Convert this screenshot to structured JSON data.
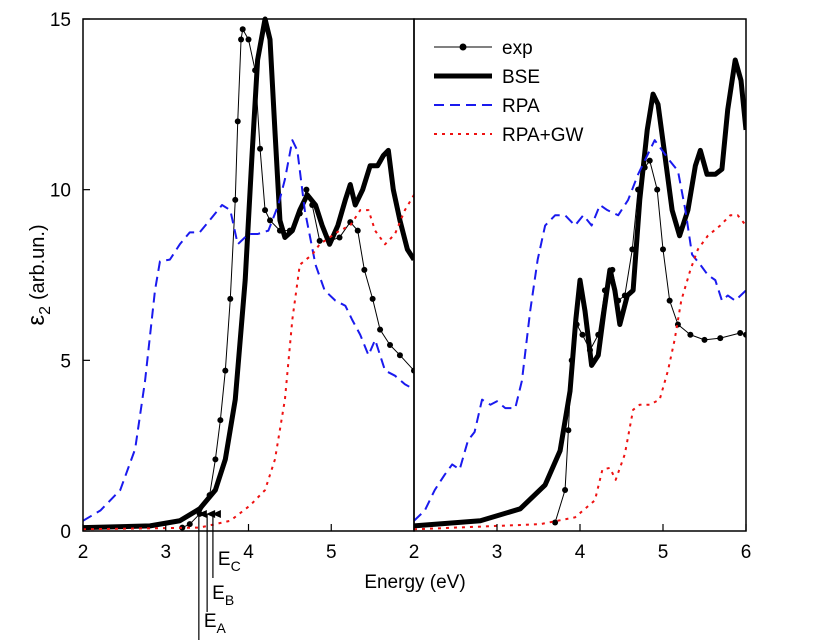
{
  "chart_data": [
    {
      "type": "line",
      "xlabel": "Energy (eV)",
      "ylabel": {
        "symbol": "ε",
        "subscript": "2",
        "unit": "(arb.un.)"
      },
      "xlim": [
        2,
        6
      ],
      "xticks": [
        2,
        3,
        4,
        5
      ],
      "ylim": [
        0,
        15
      ],
      "yticks": [
        0,
        5,
        10,
        15
      ],
      "series": [
        {
          "color": "#000000",
          "style": "dots",
          "width": 1,
          "x": [
            3.2,
            3.29,
            3.41,
            3.53,
            3.6,
            3.66,
            3.72,
            3.78,
            3.84,
            3.87,
            3.91,
            3.93,
            4.0,
            4.08,
            4.14,
            4.2,
            4.26,
            4.38,
            4.5,
            4.62,
            4.7,
            4.77,
            4.86,
            4.98,
            5.1,
            5.23,
            5.32,
            5.4,
            5.5,
            5.59,
            5.71,
            5.83,
            6.0
          ],
          "values": [
            0.1,
            0.2,
            0.5,
            1.05,
            2.1,
            3.25,
            4.7,
            6.8,
            9.7,
            12,
            14.4,
            14.7,
            14.4,
            13.5,
            11.2,
            9.4,
            9.1,
            8.8,
            8.8,
            9.3,
            10,
            9.55,
            8.5,
            8.5,
            8.6,
            9.05,
            8.8,
            7.65,
            6.8,
            5.9,
            5.45,
            5.15,
            4.7
          ]
        },
        {
          "color": "#000000",
          "style": "solid",
          "width": 5,
          "x": [
            2.0,
            2.81,
            3.17,
            3.41,
            3.6,
            3.72,
            3.84,
            3.96,
            4.04,
            4.11,
            4.2,
            4.26,
            4.32,
            4.38,
            4.44,
            4.53,
            4.62,
            4.71,
            4.81,
            4.89,
            4.98,
            5.08,
            5.17,
            5.23,
            5.29,
            5.38,
            5.47,
            5.56,
            5.63,
            5.69,
            5.75,
            5.83,
            5.92,
            6.0
          ],
          "values": [
            0.1,
            0.15,
            0.3,
            0.65,
            1.2,
            2.1,
            3.85,
            7.35,
            10.9,
            13.8,
            15,
            14.4,
            11.7,
            9.1,
            8.6,
            8.8,
            9.4,
            9.85,
            9.55,
            8.95,
            8.4,
            8.95,
            9.7,
            10.15,
            9.55,
            10,
            10.7,
            10.7,
            11,
            11.15,
            10,
            9.1,
            8.25,
            7.95
          ]
        },
        {
          "color": "#1a1aee",
          "style": "dashed",
          "width": 2,
          "x": [
            2.0,
            2.21,
            2.45,
            2.63,
            2.75,
            2.87,
            2.93,
            3.05,
            3.17,
            3.29,
            3.41,
            3.53,
            3.68,
            3.78,
            3.87,
            4.0,
            4.11,
            4.24,
            4.36,
            4.44,
            4.53,
            4.59,
            4.68,
            4.81,
            4.92,
            5.05,
            5.17,
            5.25,
            5.35,
            5.45,
            5.53,
            5.65,
            5.77,
            5.89,
            6.0
          ],
          "values": [
            0.3,
            0.6,
            1.2,
            2.4,
            4.4,
            7.05,
            7.9,
            7.95,
            8.4,
            8.75,
            8.75,
            9.1,
            9.55,
            9.4,
            8.4,
            8.7,
            8.7,
            8.8,
            9.55,
            10.3,
            11.45,
            11.15,
            9.4,
            7.8,
            7.05,
            6.75,
            6.6,
            6.2,
            5.75,
            5.15,
            5.6,
            4.7,
            4.55,
            4.3,
            4.15
          ]
        },
        {
          "color": "#ee1111",
          "style": "dotted",
          "width": 2,
          "x": [
            2.0,
            3.41,
            3.78,
            4.02,
            4.2,
            4.32,
            4.44,
            4.53,
            4.62,
            4.77,
            4.86,
            4.98,
            5.1,
            5.23,
            5.35,
            5.45,
            5.53,
            5.65,
            5.77,
            5.89,
            6.0
          ],
          "values": [
            0.05,
            0.1,
            0.3,
            0.75,
            1.2,
            2.1,
            3.85,
            6.2,
            7.8,
            8.1,
            8.4,
            8.6,
            8.8,
            8.95,
            9.4,
            9.4,
            8.8,
            8.4,
            8.7,
            9.4,
            9.85
          ]
        }
      ],
      "annotations": [
        {
          "text": "E",
          "subscript": "A",
          "x": 3.4
        },
        {
          "text": "E",
          "subscript": "B",
          "x": 3.5
        },
        {
          "text": "E",
          "subscript": "C",
          "x": 3.57
        }
      ]
    },
    {
      "type": "line",
      "xlim": [
        2,
        6
      ],
      "xticks": [
        2,
        3,
        4,
        5,
        6
      ],
      "ylim": [
        0,
        15
      ],
      "legend": "upper left",
      "series": [
        {
          "name": "exp",
          "color": "#000000",
          "style": "dots",
          "width": 1,
          "x": [
            3.7,
            3.82,
            3.86,
            3.9,
            3.96,
            4.03,
            4.12,
            4.22,
            4.3,
            4.39,
            4.46,
            4.54,
            4.63,
            4.7,
            4.78,
            4.84,
            4.93,
            5.0,
            5.08,
            5.18,
            5.33,
            5.5,
            5.69,
            5.93,
            6.0
          ],
          "values": [
            0.25,
            1.2,
            2.95,
            5.0,
            6.05,
            5.75,
            5.3,
            5.75,
            7.05,
            7.65,
            6.75,
            6.9,
            8.25,
            10,
            10.65,
            10.85,
            10,
            8.25,
            6.75,
            6.05,
            5.75,
            5.6,
            5.65,
            5.8,
            5.75
          ]
        },
        {
          "name": "BSE",
          "color": "#000000",
          "style": "solid",
          "width": 5,
          "x": [
            2.0,
            2.8,
            3.28,
            3.58,
            3.76,
            3.88,
            3.95,
            4.0,
            4.06,
            4.14,
            4.22,
            4.29,
            4.36,
            4.42,
            4.48,
            4.57,
            4.64,
            4.72,
            4.81,
            4.88,
            4.94,
            5.02,
            5.11,
            5.2,
            5.3,
            5.39,
            5.45,
            5.53,
            5.63,
            5.71,
            5.78,
            5.87,
            5.94,
            6.0
          ],
          "values": [
            0.15,
            0.3,
            0.65,
            1.35,
            2.35,
            4.1,
            6.2,
            7.35,
            6.45,
            4.85,
            5.15,
            6.45,
            7.65,
            7.05,
            6.05,
            6.9,
            7.05,
            9.7,
            11.75,
            12.8,
            12.5,
            11.05,
            9.4,
            8.65,
            9.4,
            10.7,
            11.15,
            10.45,
            10.45,
            10.6,
            12.35,
            13.8,
            13.2,
            11.75
          ]
        },
        {
          "name": "RPA",
          "color": "#1a1aee",
          "style": "dashed",
          "width": 2,
          "x": [
            2.0,
            2.13,
            2.25,
            2.37,
            2.46,
            2.55,
            2.65,
            2.73,
            2.82,
            2.92,
            3.0,
            3.1,
            3.22,
            3.3,
            3.4,
            3.49,
            3.58,
            3.7,
            3.82,
            3.94,
            4.04,
            4.14,
            4.24,
            4.33,
            4.46,
            4.58,
            4.7,
            4.82,
            4.9,
            4.99,
            5.08,
            5.18,
            5.27,
            5.35,
            5.45,
            5.54,
            5.63,
            5.71,
            5.78,
            5.87,
            6.0
          ],
          "values": [
            0.3,
            0.6,
            1.2,
            1.65,
            1.95,
            1.8,
            2.65,
            2.9,
            3.85,
            3.7,
            3.8,
            3.6,
            3.6,
            4.4,
            6.45,
            7.95,
            8.95,
            9.25,
            9.25,
            8.95,
            9.25,
            8.95,
            9.55,
            9.4,
            9.25,
            9.7,
            10.45,
            11.05,
            11.45,
            11.15,
            10.85,
            10.55,
            9.4,
            8.1,
            7.8,
            7.5,
            7.35,
            6.75,
            6.9,
            6.75,
            7.05
          ]
        },
        {
          "name": "RPA+GW",
          "color": "#ee1111",
          "style": "dotted",
          "width": 2,
          "x": [
            2.0,
            3.52,
            3.94,
            4.18,
            4.27,
            4.36,
            4.43,
            4.54,
            4.64,
            4.72,
            4.84,
            4.96,
            5.06,
            5.14,
            5.22,
            5.33,
            5.42,
            5.54,
            5.69,
            5.81,
            5.9,
            6.0
          ],
          "values": [
            0.05,
            0.2,
            0.4,
            0.9,
            1.8,
            1.85,
            1.5,
            2.25,
            3.55,
            3.7,
            3.7,
            3.85,
            4.7,
            5.6,
            6.75,
            7.65,
            8.25,
            8.65,
            8.95,
            9.25,
            9.25,
            8.95
          ]
        }
      ]
    }
  ]
}
